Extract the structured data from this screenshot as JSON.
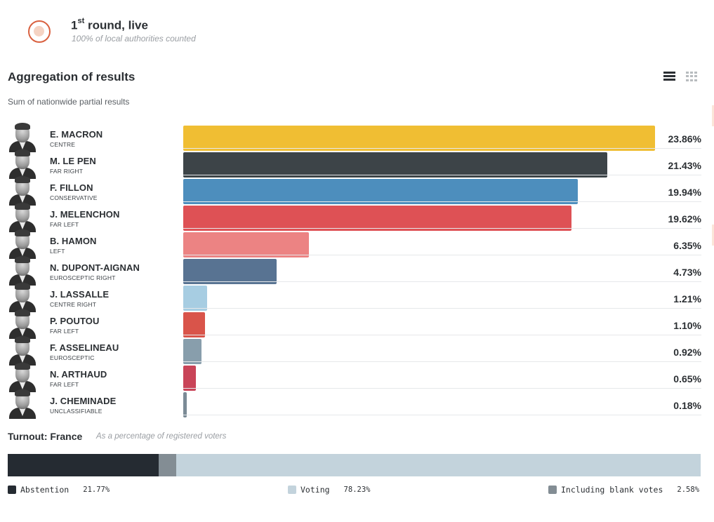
{
  "header": {
    "round_number": "1",
    "round_suffix": "st",
    "round_title": " round, live",
    "counted": "100% of local authorities counted",
    "live_icon": "live-indicator-icon",
    "live_color": "#d9603f"
  },
  "section": {
    "title": "Aggregation of results",
    "subtitle": "Sum of nationwide partial results",
    "view_list_icon": "list-view-icon",
    "view_grid_icon": "grid-view-icon"
  },
  "chart_data": {
    "type": "bar",
    "orientation": "horizontal",
    "title": "Aggregation of results",
    "subtitle": "Sum of nationwide partial results",
    "xlabel": "",
    "ylabel": "",
    "xlim": [
      0,
      23.86
    ],
    "grid": false,
    "unit": "%",
    "categories": [
      "E. MACRON",
      "M. LE PEN",
      "F. FILLON",
      "J. MELENCHON",
      "B. HAMON",
      "N. DUPONT-AIGNAN",
      "J. LASSALLE",
      "P. POUTOU",
      "F. ASSELINEAU",
      "N. ARTHAUD",
      "J. CHEMINADE"
    ],
    "values": [
      23.86,
      21.43,
      19.94,
      19.62,
      6.35,
      4.73,
      1.21,
      1.1,
      0.92,
      0.65,
      0.18
    ],
    "candidates": [
      {
        "name": "E. MACRON",
        "party": "CENTRE",
        "value": 23.86,
        "label": "23.86%",
        "color": "#f0be33"
      },
      {
        "name": "M. LE PEN",
        "party": "FAR RIGHT",
        "value": 21.43,
        "label": "21.43%",
        "color": "#3d4448"
      },
      {
        "name": "F. FILLON",
        "party": "CONSERVATIVE",
        "value": 19.94,
        "label": "19.94%",
        "color": "#4d8ebd"
      },
      {
        "name": "J. MELENCHON",
        "party": "FAR LEFT",
        "value": 19.62,
        "label": "19.62%",
        "color": "#de5155"
      },
      {
        "name": "B. HAMON",
        "party": "LEFT",
        "value": 6.35,
        "label": "6.35%",
        "color": "#ec8383"
      },
      {
        "name": "N. DUPONT-AIGNAN",
        "party": "EUROSCEPTIC RIGHT",
        "value": 4.73,
        "label": "4.73%",
        "color": "#587392"
      },
      {
        "name": "J. LASSALLE",
        "party": "CENTRE RIGHT",
        "value": 1.21,
        "label": "1.21%",
        "color": "#a7cde2"
      },
      {
        "name": "P. POUTOU",
        "party": "FAR LEFT",
        "value": 1.1,
        "label": "1.10%",
        "color": "#d9544a"
      },
      {
        "name": "F. ASSELINEAU",
        "party": "EUROSCEPTIC",
        "value": 0.92,
        "label": "0.92%",
        "color": "#889eac"
      },
      {
        "name": "N. ARTHAUD",
        "party": "FAR LEFT",
        "value": 0.65,
        "label": "0.65%",
        "color": "#c94458"
      },
      {
        "name": "J. CHEMINADE",
        "party": "UNCLASSIFIABLE",
        "value": 0.18,
        "label": "0.18%",
        "color": "#7b8b96"
      }
    ]
  },
  "turnout": {
    "title": "Turnout: France",
    "subtitle": "As a percentage of registered voters",
    "segments": [
      {
        "name": "Abstention",
        "value": 21.77,
        "label": "21.77%",
        "color": "#252b32"
      },
      {
        "name": "Including blank votes",
        "value": 2.58,
        "label": "2.58%",
        "color": "#838d94"
      },
      {
        "name": "Voting",
        "value": 78.23,
        "label": "78.23%",
        "color": "#c3d3dc"
      }
    ],
    "legend": {
      "abstention_label": "Abstention",
      "abstention_value": "21.77%",
      "voting_label": "Voting",
      "voting_value": "78.23%",
      "blank_label": "Including blank votes",
      "blank_value": "2.58%"
    }
  }
}
